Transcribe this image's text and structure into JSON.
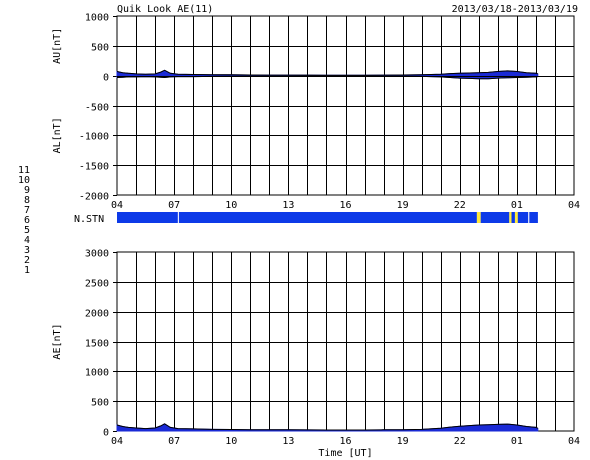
{
  "header": {
    "title": "Quik Look AE(11)",
    "date_range": "2013/03/18-2013/03/19"
  },
  "colors": {
    "data_fill": "#1a2ad6",
    "station_bar": "#0d3ae8",
    "station_gap": "#ffe93a",
    "grid": "#000000"
  },
  "station_legend": {
    "label": "N.STN",
    "items": [
      {
        "label": "11",
        "color": "#33e6e6"
      },
      {
        "label": "10",
        "color": "#e633e6"
      },
      {
        "label": "9",
        "color": "#3333e6"
      },
      {
        "label": "8",
        "color": "#f0e68c"
      },
      {
        "label": "7",
        "color": "#a6d65a"
      },
      {
        "label": "6",
        "color": "#e63333"
      },
      {
        "label": "5",
        "color": "#d0d0d0"
      },
      {
        "label": "4",
        "color": "#a0a0a0"
      },
      {
        "label": "3",
        "color": "#33cccc"
      },
      {
        "label": "2",
        "color": "#a633a6"
      },
      {
        "label": "1",
        "color": "#3333cc"
      }
    ]
  },
  "chart_data": [
    {
      "type": "area",
      "panel": "AU/AL",
      "ylabel_top": "AU[nT]",
      "ylabel_bottom": "AL[nT]",
      "ylim": [
        -2000,
        1000
      ],
      "yticks": [
        "1000",
        "500",
        "0",
        "-500",
        "-1000",
        "-1500",
        "-2000"
      ],
      "ytick_values": [
        1000,
        500,
        0,
        -500,
        -1000,
        -1500,
        -2000
      ],
      "xlim": [
        4,
        28
      ],
      "xticks": [
        "04",
        "07",
        "10",
        "13",
        "16",
        "19",
        "22",
        "01",
        "04"
      ],
      "xtick_values": [
        4,
        7,
        10,
        13,
        16,
        19,
        22,
        25,
        28
      ],
      "grid": true,
      "x": [
        4.0,
        4.3,
        4.6,
        5.0,
        5.5,
        6.0,
        6.3,
        6.5,
        6.8,
        7.2,
        8.0,
        9.0,
        10.0,
        11.0,
        12.0,
        13.0,
        14.0,
        15.0,
        16.0,
        17.0,
        18.0,
        19.0,
        20.0,
        21.0,
        21.5,
        22.0,
        22.5,
        23.0,
        23.5,
        24.0,
        24.5,
        25.0,
        25.5,
        26.0,
        26.1
      ],
      "au": [
        70,
        50,
        40,
        30,
        25,
        30,
        60,
        90,
        40,
        25,
        20,
        15,
        15,
        12,
        10,
        10,
        10,
        8,
        8,
        8,
        10,
        12,
        15,
        25,
        35,
        40,
        45,
        50,
        55,
        70,
        80,
        70,
        50,
        40,
        30
      ],
      "al": [
        -30,
        -25,
        -20,
        -20,
        -15,
        -20,
        -25,
        -30,
        -20,
        -15,
        -15,
        -12,
        -10,
        -10,
        -10,
        -10,
        -8,
        -8,
        -8,
        -8,
        -10,
        -10,
        -12,
        -20,
        -30,
        -40,
        -45,
        -50,
        -50,
        -40,
        -35,
        -30,
        -25,
        -20,
        -15
      ]
    },
    {
      "type": "bar",
      "panel": "N.STN",
      "label": "N.STN",
      "xlim": [
        4,
        28
      ],
      "segments": [
        {
          "start": 4.0,
          "end": 7.2,
          "status": "ok"
        },
        {
          "start": 7.2,
          "end": 7.25,
          "status": "gap-white"
        },
        {
          "start": 7.25,
          "end": 22.9,
          "status": "ok"
        },
        {
          "start": 22.9,
          "end": 23.1,
          "status": "gap"
        },
        {
          "start": 23.1,
          "end": 24.6,
          "status": "ok"
        },
        {
          "start": 24.6,
          "end": 24.72,
          "status": "gap"
        },
        {
          "start": 24.72,
          "end": 24.9,
          "status": "ok"
        },
        {
          "start": 24.9,
          "end": 25.05,
          "status": "gap"
        },
        {
          "start": 25.05,
          "end": 25.6,
          "status": "ok"
        },
        {
          "start": 25.6,
          "end": 25.65,
          "status": "gap-white"
        },
        {
          "start": 25.65,
          "end": 26.1,
          "status": "ok"
        }
      ]
    },
    {
      "type": "area",
      "panel": "AE",
      "ylabel": "AE[nT]",
      "xlabel": "Time [UT]",
      "ylim": [
        0,
        3000
      ],
      "yticks": [
        "3000",
        "2500",
        "2000",
        "1500",
        "1000",
        "500",
        "0"
      ],
      "ytick_values": [
        3000,
        2500,
        2000,
        1500,
        1000,
        500,
        0
      ],
      "xlim": [
        4,
        28
      ],
      "xticks": [
        "04",
        "07",
        "10",
        "13",
        "16",
        "19",
        "22",
        "01",
        "04"
      ],
      "xtick_values": [
        4,
        7,
        10,
        13,
        16,
        19,
        22,
        25,
        28
      ],
      "grid": true,
      "x": [
        4.0,
        4.3,
        4.6,
        5.0,
        5.5,
        6.0,
        6.3,
        6.5,
        6.8,
        7.2,
        8.0,
        9.0,
        10.0,
        11.0,
        12.0,
        13.0,
        14.0,
        15.0,
        16.0,
        17.0,
        18.0,
        19.0,
        20.0,
        21.0,
        21.5,
        22.0,
        22.5,
        23.0,
        23.5,
        24.0,
        24.5,
        25.0,
        25.5,
        26.0,
        26.1
      ],
      "values": [
        100,
        75,
        60,
        50,
        40,
        50,
        85,
        120,
        60,
        40,
        35,
        27,
        25,
        22,
        20,
        20,
        18,
        16,
        16,
        16,
        20,
        22,
        27,
        45,
        65,
        80,
        90,
        100,
        105,
        110,
        115,
        100,
        75,
        60,
        45
      ]
    }
  ]
}
